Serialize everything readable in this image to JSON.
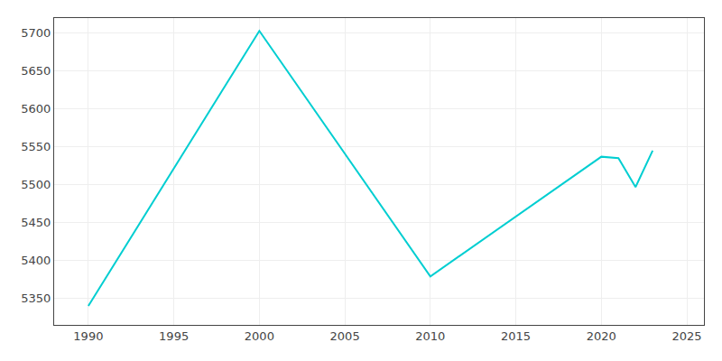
{
  "chart_data": {
    "type": "line",
    "x": [
      1990,
      2000,
      2010,
      2020,
      2021,
      2022,
      2023
    ],
    "values": [
      5340,
      5703,
      5379,
      5537,
      5535,
      5497,
      5545
    ],
    "color": "#00CED1",
    "xlim": [
      1988,
      2026
    ],
    "ylim": [
      5315,
      5720
    ],
    "xticks": [
      1990,
      1995,
      2000,
      2005,
      2010,
      2015,
      2020,
      2025
    ],
    "yticks": [
      5350,
      5400,
      5450,
      5500,
      5550,
      5600,
      5650,
      5700
    ],
    "grid": true
  }
}
